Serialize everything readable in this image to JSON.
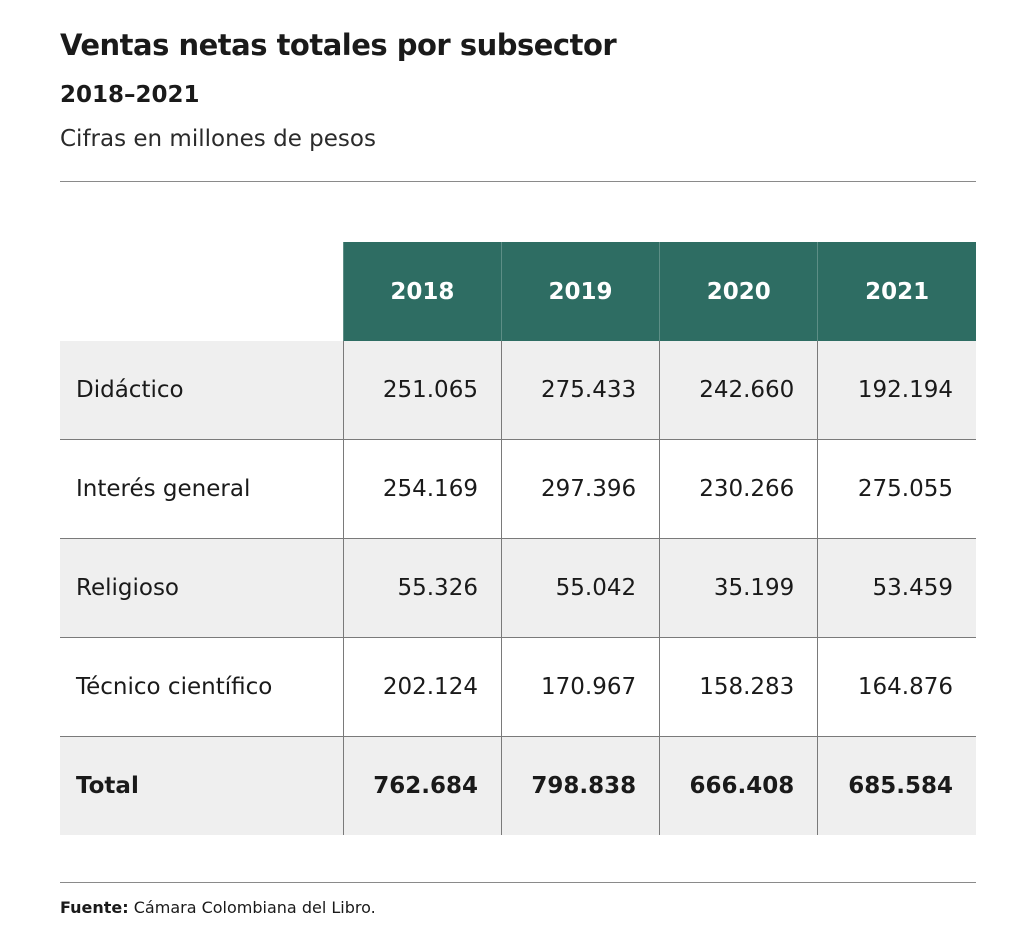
{
  "title": "Ventas netas totales por subsector",
  "subtitle": "2018–2021",
  "units": "Cifras en millones de pesos",
  "source_label": "Fuente:",
  "source_text": " Cámara Colombiana del Libro.",
  "colors": {
    "header_bg": "#2e6d63",
    "shade_bg": "#efefef"
  },
  "chart_data": {
    "type": "table",
    "title": "Ventas netas totales por subsector",
    "subtitle": "2018–2021",
    "columns": [
      "2018",
      "2019",
      "2020",
      "2021"
    ],
    "rows": [
      {
        "label": "Didáctico",
        "values": [
          "251.065",
          "275.433",
          "242.660",
          "192.194"
        ],
        "bold": false
      },
      {
        "label": "Interés general",
        "values": [
          "254.169",
          "297.396",
          "230.266",
          "275.055"
        ],
        "bold": false
      },
      {
        "label": "Religioso",
        "values": [
          "55.326",
          "55.042",
          "35.199",
          "53.459"
        ],
        "bold": false
      },
      {
        "label": "Técnico científico",
        "values": [
          "202.124",
          "170.967",
          "158.283",
          "164.876"
        ],
        "bold": false
      },
      {
        "label": "Total",
        "values": [
          "762.684",
          "798.838",
          "666.408",
          "685.584"
        ],
        "bold": true
      }
    ]
  }
}
